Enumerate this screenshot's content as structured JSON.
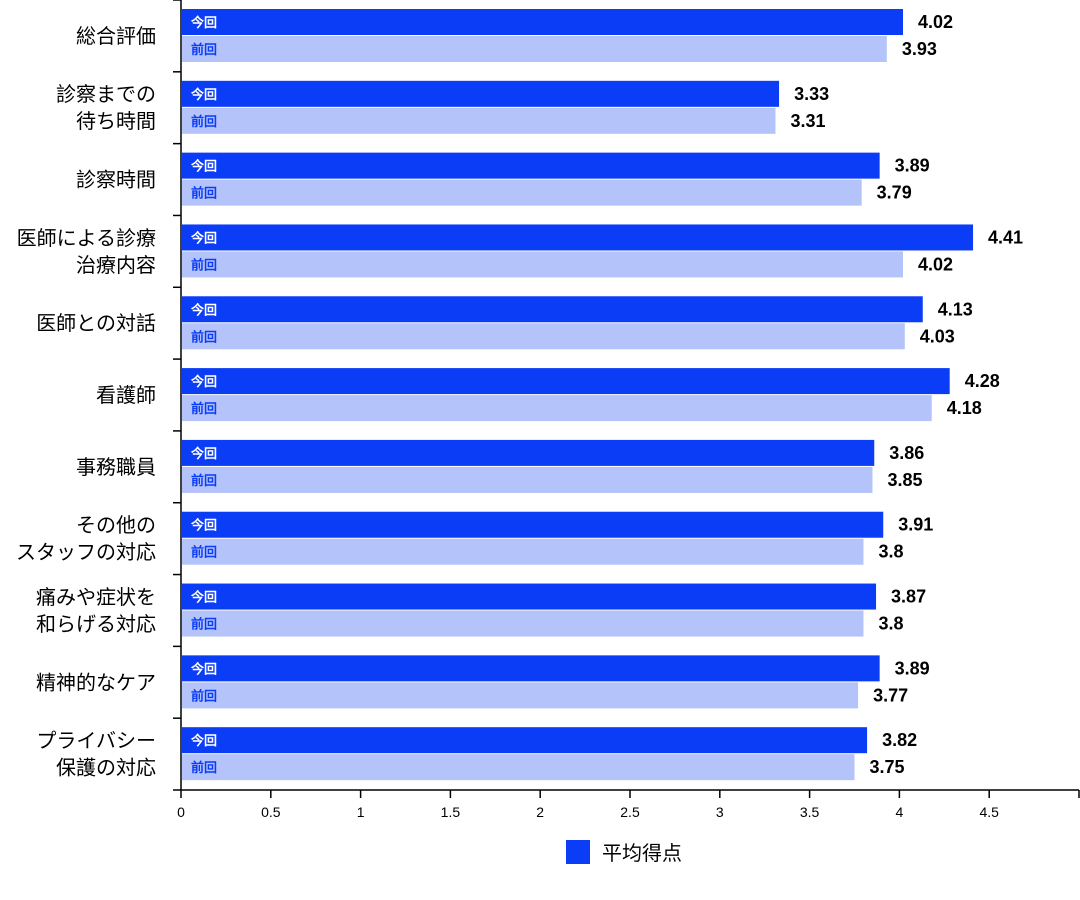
{
  "chart_data": {
    "type": "bar",
    "orientation": "horizontal",
    "categories": [
      [
        "総合評価"
      ],
      [
        "診察までの",
        "待ち時間"
      ],
      [
        "診察時間"
      ],
      [
        "医師による診療",
        "治療内容"
      ],
      [
        "医師との対話"
      ],
      [
        "看護師"
      ],
      [
        "事務職員"
      ],
      [
        "その他の",
        "スタッフの対応"
      ],
      [
        "痛みや症状を",
        "和らげる対応"
      ],
      [
        "精神的なケア"
      ],
      [
        "プライバシー",
        "保護の対応"
      ]
    ],
    "series": [
      {
        "name": "今回",
        "color": "#0b3cf6",
        "tag_color": "#ffffff",
        "values": [
          4.02,
          3.33,
          3.89,
          4.41,
          4.13,
          4.28,
          3.86,
          3.91,
          3.87,
          3.89,
          3.82
        ],
        "labels": [
          "4.02",
          "3.33",
          "3.89",
          "4.41",
          "4.13",
          "4.28",
          "3.86",
          "3.91",
          "3.87",
          "3.89",
          "3.82"
        ]
      },
      {
        "name": "前回",
        "color": "#b5c3fb",
        "tag_color": "#0b3cf6",
        "values": [
          3.93,
          3.31,
          3.79,
          4.02,
          4.03,
          4.18,
          3.85,
          3.8,
          3.8,
          3.77,
          3.75
        ],
        "labels": [
          "3.93",
          "3.31",
          "3.79",
          "4.02",
          "4.03",
          "4.18",
          "3.85",
          "3.8",
          "3.8",
          "3.77",
          "3.75"
        ]
      }
    ],
    "xlim": [
      0,
      5
    ],
    "x_ticks": [
      0,
      0.5,
      1,
      1.5,
      2,
      2.5,
      3,
      3.5,
      4,
      4.5,
      5
    ],
    "x_tick_labels": [
      "0",
      "0.5",
      "1",
      "1.5",
      "2",
      "2.5",
      "3",
      "3.5",
      "4",
      "4.5",
      ""
    ],
    "legend": {
      "label": "平均得点",
      "color": "#0b3cf6",
      "placement": "bottom-center"
    },
    "grid": false
  }
}
